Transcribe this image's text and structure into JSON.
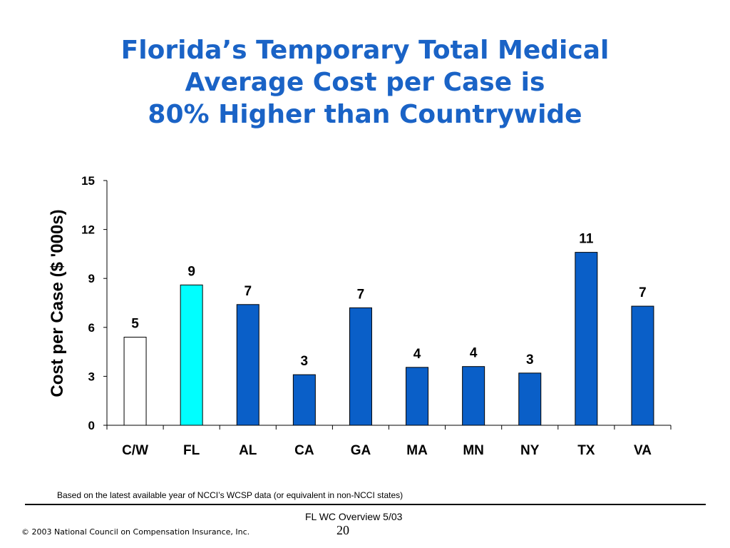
{
  "slide": {
    "title_lines": [
      "Florida’s Temporary Total Medical",
      "Average Cost per Case is",
      "80% Higher than Countrywide"
    ],
    "footnote": "Based on the latest available year of NCCI’s WCSP data  (or equivalent in non-NCCI states)",
    "overview": "FL WC Overview 5/03",
    "page_number": "20",
    "copyright": "© 2003 National Council on Compensation Insurance, Inc."
  },
  "chart_data": {
    "type": "bar",
    "title": "",
    "xlabel": "",
    "ylabel": "Cost per Case ($ '000s)",
    "ylim": [
      0,
      15
    ],
    "yticks": [
      0,
      3,
      6,
      9,
      12,
      15
    ],
    "grid": false,
    "categories": [
      "C/W",
      "FL",
      "AL",
      "CA",
      "GA",
      "MA",
      "MN",
      "NY",
      "TX",
      "VA"
    ],
    "values": [
      5.4,
      8.6,
      7.4,
      3.1,
      7.2,
      3.55,
      3.6,
      3.2,
      10.6,
      7.3
    ],
    "data_labels": [
      "5",
      "9",
      "7",
      "3",
      "7",
      "4",
      "4",
      "3",
      "11",
      "7"
    ],
    "bar_colors": [
      "#ffffff",
      "#00ffff",
      "#0a5fc8",
      "#0a5fc8",
      "#0a5fc8",
      "#0a5fc8",
      "#0a5fc8",
      "#0a5fc8",
      "#0a5fc8",
      "#0a5fc8"
    ]
  }
}
